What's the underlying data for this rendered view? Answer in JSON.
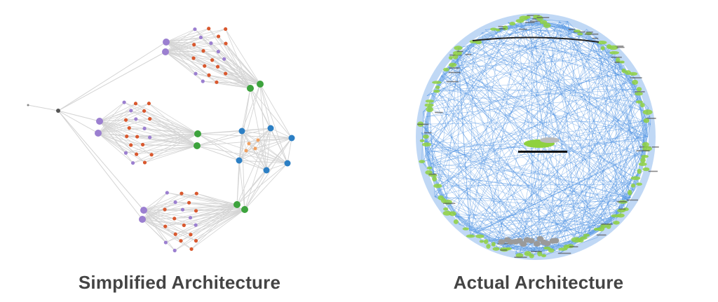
{
  "captions": {
    "left": "Simplified Architecture",
    "right": "Actual Architecture"
  },
  "colors": {
    "edge": "#d4d4d4",
    "hub": "#555555",
    "purple": "#9b7fd0",
    "red": "#d9582e",
    "green": "#3da33d",
    "blue": "#2c7fc4",
    "orange": "#f0a060",
    "blue_edge": "#4a90e2",
    "lime": "#8fd13f"
  }
}
